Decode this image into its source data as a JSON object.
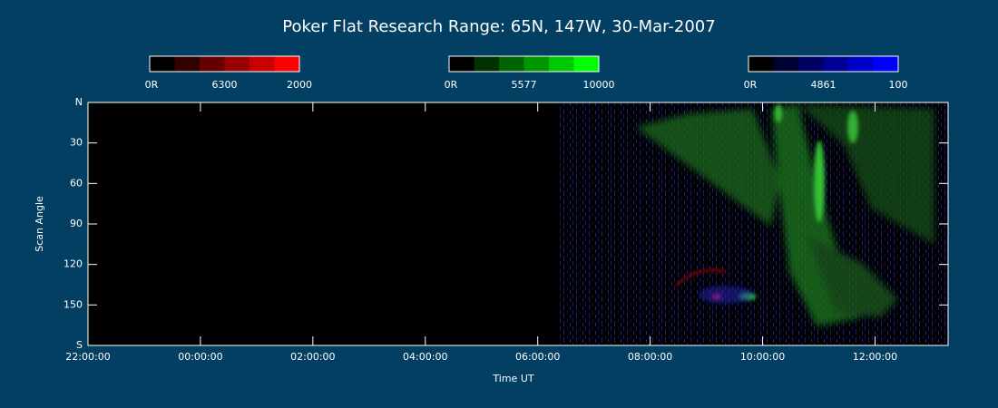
{
  "chart_data": {
    "type": "keogram",
    "title": "Poker Flat Research Range: 65N, 147W, 30-Mar-2007",
    "xlabel": "Time UT",
    "ylabel": "Scan Angle",
    "xlim": [
      -2,
      13.3
    ],
    "xticks": [
      {
        "value": -2,
        "label": "22:00:00"
      },
      {
        "value": 0,
        "label": "00:00:00"
      },
      {
        "value": 2,
        "label": "02:00:00"
      },
      {
        "value": 4,
        "label": "04:00:00"
      },
      {
        "value": 6,
        "label": "06:00:00"
      },
      {
        "value": 8,
        "label": "08:00:00"
      },
      {
        "value": 10,
        "label": "10:00:00"
      },
      {
        "value": 12,
        "label": "12:00:00"
      }
    ],
    "ylim": [
      180,
      0
    ],
    "yticks": [
      {
        "value": 0,
        "label": "N"
      },
      30,
      60,
      90,
      120,
      150,
      {
        "value": 180,
        "label": "S"
      }
    ],
    "colorbars": [
      {
        "name": "6300",
        "ticks": [
          {
            "value": 0,
            "label": "0R"
          },
          2000
        ],
        "colors": [
          "#000000",
          "#320000",
          "#640000",
          "#960000",
          "#c80000",
          "#ff0000"
        ]
      },
      {
        "name": "5577",
        "ticks": [
          {
            "value": 0,
            "label": "0R"
          },
          10000
        ],
        "colors": [
          "#000000",
          "#003200",
          "#006400",
          "#009600",
          "#00c800",
          "#00ff00"
        ]
      },
      {
        "name": "4861",
        "ticks": [
          {
            "value": 0,
            "label": "0R"
          },
          100
        ],
        "colors": [
          "#000000",
          "#000032",
          "#000064",
          "#000096",
          "#0000c8",
          "#0000ff"
        ]
      }
    ]
  }
}
